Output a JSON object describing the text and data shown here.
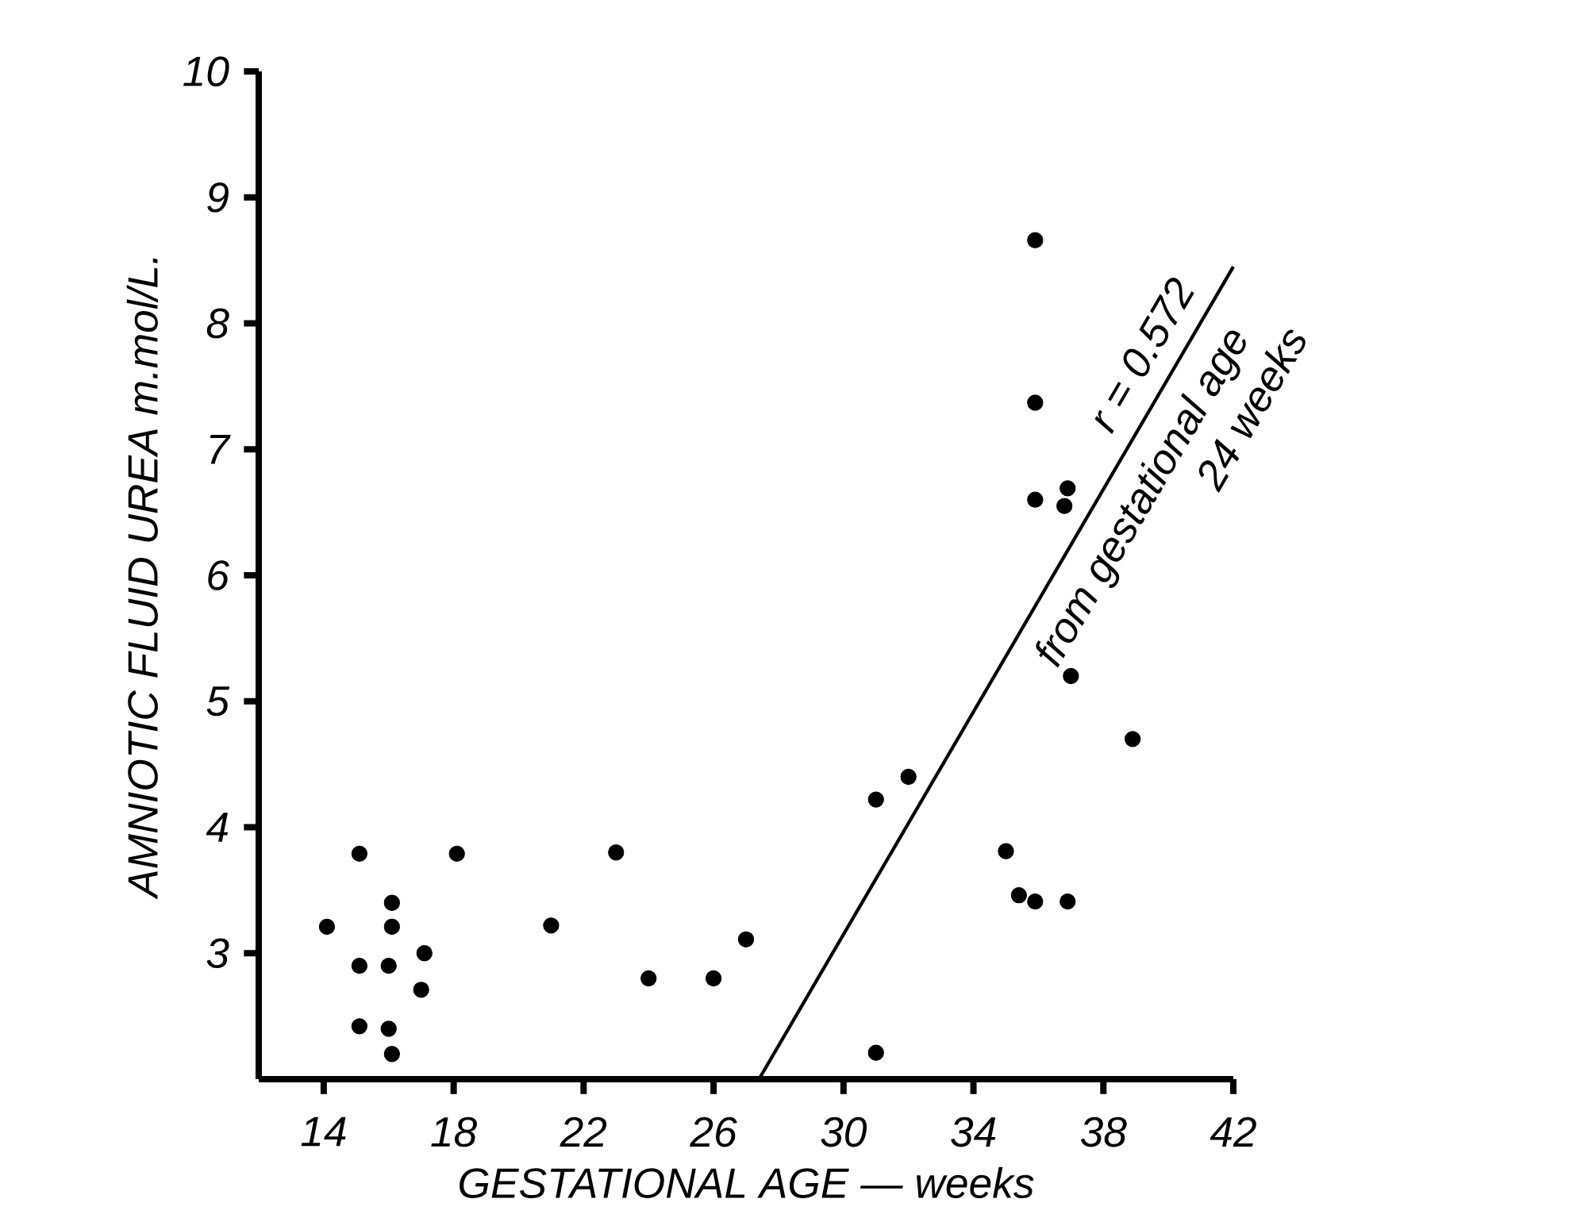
{
  "chart_data": {
    "type": "scatter",
    "xlabel": "GESTATIONAL  AGE — weeks",
    "ylabel": "AMNIOTIC  FLUID  UREA  m.mol/L.",
    "xlim": [
      12,
      42
    ],
    "xticks": [
      14,
      18,
      22,
      26,
      30,
      34,
      38,
      42
    ],
    "ylim": [
      2,
      10
    ],
    "yticks": [
      3,
      4,
      5,
      6,
      7,
      8,
      9,
      10
    ],
    "marker": "circle",
    "series": [
      {
        "color": "#000000",
        "x": [
          15.1,
          18.1,
          23.0,
          16.1,
          14.1,
          16.1,
          21.0,
          27.0,
          17.1,
          15.1,
          16.0,
          17.0,
          24.0,
          26.0,
          15.1,
          16.0,
          16.1,
          37.0,
          38.9,
          32.0,
          31.0,
          35.0,
          35.4,
          35.9,
          36.9,
          31.0,
          35.9,
          35.9,
          35.9,
          36.9,
          36.8
        ],
        "values": [
          3.79,
          3.79,
          3.8,
          3.4,
          3.21,
          3.21,
          3.22,
          3.11,
          3.0,
          2.9,
          2.9,
          2.71,
          2.8,
          2.8,
          2.42,
          2.4,
          2.2,
          5.2,
          4.7,
          4.4,
          4.22,
          3.81,
          3.46,
          3.41,
          3.41,
          2.21,
          8.66,
          7.37,
          6.6,
          6.69,
          6.55
        ]
      },
      {
        "type": "line",
        "color": "#000000",
        "marker": "none",
        "x": [
          27.4,
          42
        ],
        "values": [
          2,
          8.45
        ]
      }
    ],
    "annotations": [
      "r = 0.572",
      "from gestational age",
      "24  weeks"
    ]
  }
}
